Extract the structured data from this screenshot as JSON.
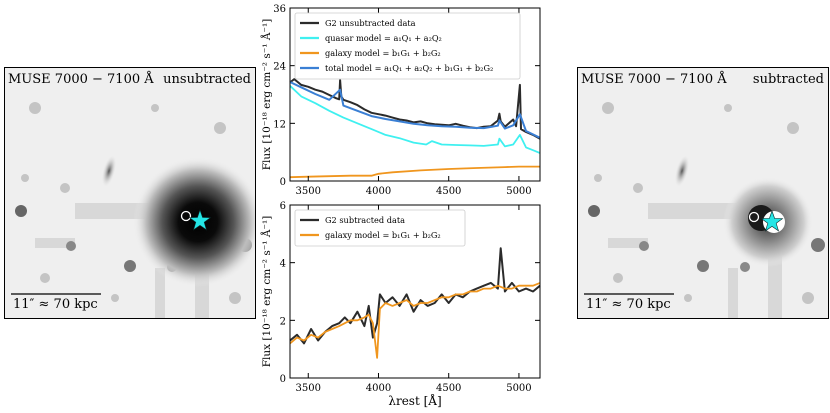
{
  "left_panel": {
    "band_label": "MUSE 7000 − 7100 Å",
    "state_label": "unsubtracted",
    "scale_bar_label": "11″ ≈ 70 kpc"
  },
  "right_panel": {
    "band_label": "MUSE 7000 − 7100 Å",
    "state_label": "subtracted",
    "scale_bar_label": "11″ ≈ 70 kpc"
  },
  "colors": {
    "data": "#2b2b2b",
    "quasar": "#3ff0f0",
    "galaxy": "#f0961e",
    "total": "#3a7fd4",
    "subtracted_data": "#2b2b2b",
    "star": "#24e6e6"
  },
  "chart_data": [
    {
      "type": "line",
      "title": "",
      "xlabel": "",
      "ylabel": "Flux [10⁻¹⁸ erg cm⁻² s⁻¹ Å⁻¹]",
      "xlim": [
        3370,
        5150
      ],
      "ylim": [
        0,
        36
      ],
      "x_ticks": [
        3500,
        4000,
        4500,
        5000
      ],
      "x_tick_labels": [
        "3500",
        "4000",
        "4500",
        "5000"
      ],
      "y_ticks": [
        0,
        12,
        24,
        36
      ],
      "y_tick_labels": [
        "0",
        "12",
        "24",
        "36"
      ],
      "legend_position": "top-right",
      "series": [
        {
          "name": "G2 unsubtracted data",
          "color_key": "data",
          "x": [
            3370,
            3400,
            3450,
            3500,
            3550,
            3600,
            3650,
            3700,
            3720,
            3727,
            3735,
            3750,
            3800,
            3850,
            3900,
            3950,
            4000,
            4050,
            4100,
            4150,
            4200,
            4250,
            4300,
            4350,
            4400,
            4450,
            4500,
            4550,
            4600,
            4650,
            4700,
            4750,
            4800,
            4850,
            4861,
            4870,
            4900,
            4959,
            4980,
            5007,
            5015,
            5050,
            5100,
            5150
          ],
          "y": [
            20.5,
            21.2,
            20.0,
            19.6,
            19.0,
            18.6,
            17.9,
            17.2,
            17.0,
            21.0,
            17.6,
            16.9,
            16.4,
            15.8,
            14.9,
            14.2,
            13.9,
            13.6,
            13.2,
            12.8,
            12.6,
            12.2,
            12.4,
            12.0,
            11.8,
            11.7,
            11.6,
            11.9,
            11.5,
            11.2,
            11.0,
            11.3,
            11.4,
            12.6,
            14.0,
            12.4,
            11.3,
            12.8,
            11.4,
            20.0,
            10.8,
            10.2,
            9.6,
            8.8
          ]
        },
        {
          "name": "quasar model = a₁Q₁ + a₂Q₂",
          "color_key": "quasar",
          "x": [
            3370,
            3450,
            3550,
            3650,
            3750,
            3850,
            3950,
            4050,
            4150,
            4250,
            4340,
            4380,
            4450,
            4550,
            4650,
            4750,
            4850,
            4861,
            4900,
            4959,
            5007,
            5050,
            5100,
            5150
          ],
          "y": [
            19.8,
            17.6,
            16.2,
            14.6,
            13.2,
            12.0,
            10.8,
            9.6,
            8.9,
            8.0,
            7.6,
            8.3,
            7.6,
            7.5,
            7.4,
            7.3,
            7.6,
            8.8,
            7.2,
            7.6,
            9.6,
            7.0,
            6.4,
            5.8
          ]
        },
        {
          "name": "galaxy model = b₁G₁ + b₂G₂",
          "color_key": "galaxy",
          "x": [
            3370,
            3500,
            3650,
            3800,
            3950,
            4000,
            4100,
            4300,
            4500,
            4700,
            4900,
            5000,
            5150
          ],
          "y": [
            0.8,
            0.9,
            1.0,
            1.1,
            1.1,
            1.5,
            1.8,
            2.2,
            2.5,
            2.7,
            2.9,
            3.0,
            3.0
          ]
        },
        {
          "name": "total model = a₁Q₁ + a₂Q₂ + b₁G₁ + b₂G₂",
          "color_key": "total",
          "x": [
            3370,
            3450,
            3550,
            3650,
            3727,
            3750,
            3850,
            3950,
            4050,
            4150,
            4250,
            4350,
            4450,
            4550,
            4650,
            4750,
            4850,
            4861,
            4900,
            4959,
            5007,
            5050,
            5100,
            5150
          ],
          "y": [
            20.6,
            19.5,
            18.1,
            16.9,
            19.0,
            15.7,
            14.6,
            13.5,
            12.9,
            12.4,
            11.9,
            11.6,
            11.4,
            11.3,
            11.1,
            11.0,
            11.5,
            12.6,
            10.9,
            11.6,
            13.9,
            10.4,
            9.7,
            9.0
          ]
        }
      ]
    },
    {
      "type": "line",
      "title": "",
      "xlabel": "λrest [Å]",
      "ylabel": "Flux [10⁻¹⁸ erg cm⁻² s⁻¹ Å⁻¹]",
      "xlim": [
        3370,
        5150
      ],
      "ylim": [
        0,
        6
      ],
      "x_ticks": [
        3500,
        4000,
        4500,
        5000
      ],
      "x_tick_labels": [
        "3500",
        "4000",
        "4500",
        "5000"
      ],
      "y_ticks": [
        0,
        2,
        4,
        6
      ],
      "y_tick_labels": [
        "0",
        "2",
        "4",
        "6"
      ],
      "legend_position": "top-left",
      "series": [
        {
          "name": "G2 subtracted data",
          "color_key": "subtracted_data",
          "x": [
            3370,
            3420,
            3470,
            3520,
            3570,
            3620,
            3670,
            3720,
            3760,
            3800,
            3850,
            3900,
            3930,
            3960,
            3990,
            4010,
            4050,
            4100,
            4150,
            4200,
            4250,
            4300,
            4350,
            4400,
            4450,
            4500,
            4550,
            4600,
            4650,
            4700,
            4750,
            4800,
            4850,
            4870,
            4900,
            4950,
            5000,
            5050,
            5100,
            5150
          ],
          "y": [
            1.3,
            1.5,
            1.2,
            1.7,
            1.3,
            1.6,
            1.8,
            1.9,
            2.1,
            1.9,
            2.3,
            1.8,
            2.5,
            1.4,
            1.9,
            2.9,
            2.6,
            2.8,
            2.5,
            2.9,
            2.3,
            2.7,
            2.5,
            2.6,
            2.9,
            2.6,
            2.9,
            2.8,
            3.0,
            3.1,
            3.2,
            3.3,
            3.1,
            4.5,
            3.0,
            3.3,
            3.0,
            3.1,
            3.0,
            3.2
          ]
        },
        {
          "name": "galaxy model = b₁G₁ + b₂G₂",
          "color_key": "galaxy",
          "x": [
            3370,
            3420,
            3470,
            3520,
            3570,
            3620,
            3670,
            3720,
            3760,
            3800,
            3850,
            3900,
            3930,
            3960,
            3990,
            4010,
            4050,
            4100,
            4150,
            4200,
            4250,
            4300,
            4350,
            4400,
            4450,
            4500,
            4550,
            4600,
            4650,
            4700,
            4750,
            4800,
            4850,
            4900,
            4950,
            5000,
            5050,
            5100,
            5150
          ],
          "y": [
            1.2,
            1.4,
            1.3,
            1.5,
            1.4,
            1.6,
            1.7,
            1.8,
            1.9,
            2.0,
            2.0,
            2.1,
            2.2,
            1.9,
            0.7,
            2.4,
            2.6,
            2.5,
            2.6,
            2.7,
            2.5,
            2.6,
            2.6,
            2.7,
            2.8,
            2.8,
            2.9,
            2.9,
            3.0,
            3.0,
            3.1,
            3.1,
            3.2,
            3.1,
            3.1,
            3.2,
            3.2,
            3.2,
            3.3
          ]
        }
      ]
    }
  ]
}
